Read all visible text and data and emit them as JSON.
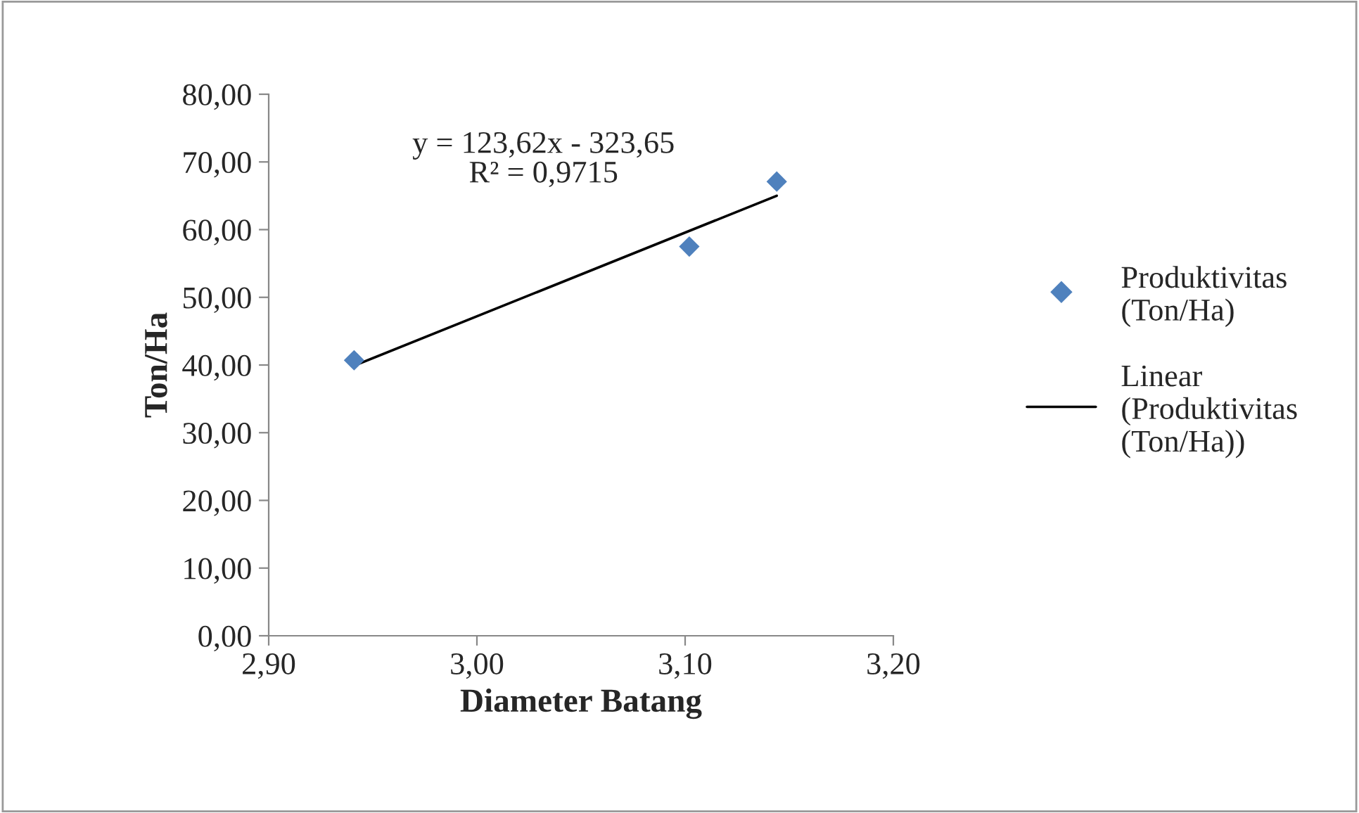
{
  "chart_data": {
    "type": "scatter",
    "xlabel": "Diameter Batang",
    "ylabel": "Ton/Ha",
    "xlim": [
      2.9,
      3.2
    ],
    "xticks": [
      {
        "value": 2.9,
        "label": "2,90"
      },
      {
        "value": 3.0,
        "label": "3,00"
      },
      {
        "value": 3.1,
        "label": "3,10"
      },
      {
        "value": 3.2,
        "label": "3,20"
      }
    ],
    "ylim": [
      0,
      80
    ],
    "yticks": [
      {
        "value": 0,
        "label": "0,00"
      },
      {
        "value": 10,
        "label": "10,00"
      },
      {
        "value": 20,
        "label": "20,00"
      },
      {
        "value": 30,
        "label": "30,00"
      },
      {
        "value": 40,
        "label": "40,00"
      },
      {
        "value": 50,
        "label": "50,00"
      },
      {
        "value": 60,
        "label": "60,00"
      },
      {
        "value": 70,
        "label": "70,00"
      },
      {
        "value": 80,
        "label": "80,00"
      }
    ],
    "grid": false,
    "legend": "right",
    "marker": "diamond",
    "series": [
      {
        "name": "Produktivitas (Ton/Ha)",
        "color": "#4f81bd",
        "x": [
          2.941,
          3.102,
          3.144
        ],
        "values": [
          40.7,
          57.5,
          67.1
        ]
      },
      {
        "name": "Linear (Produktivitas (Ton/Ha))",
        "type": "line",
        "color": "#000000",
        "x": [
          2.941,
          3.144
        ],
        "values": [
          39.9,
          65.0
        ],
        "marker": "none"
      }
    ],
    "annotations": [
      "y = 123,62x - 323,65\nR² = 0,9715"
    ]
  }
}
